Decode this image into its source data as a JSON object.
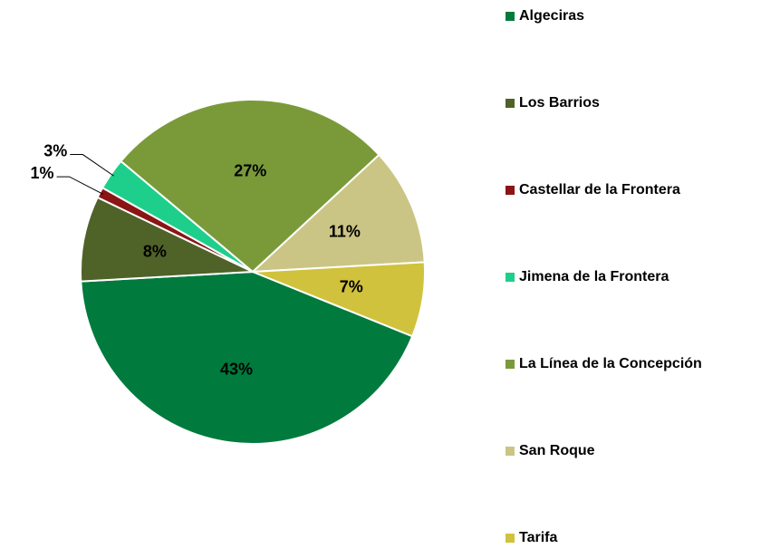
{
  "chart_data": {
    "type": "pie",
    "categories": [
      "Algeciras",
      "Los Barrios",
      "Castellar de la Frontera",
      "Jimena de la Frontera",
      "La Línea de la Concepción",
      "San Roque",
      "Tarifa"
    ],
    "values": [
      43,
      8,
      1,
      3,
      27,
      11,
      7
    ],
    "value_labels": [
      "43%",
      "8%",
      "1%",
      "3%",
      "27%",
      "11%",
      "7%"
    ],
    "colors": [
      "#007a3d",
      "#4f6228",
      "#8b1414",
      "#1ecf8c",
      "#7a9a3a",
      "#cbc585",
      "#d0c23c"
    ],
    "legend": "right"
  }
}
